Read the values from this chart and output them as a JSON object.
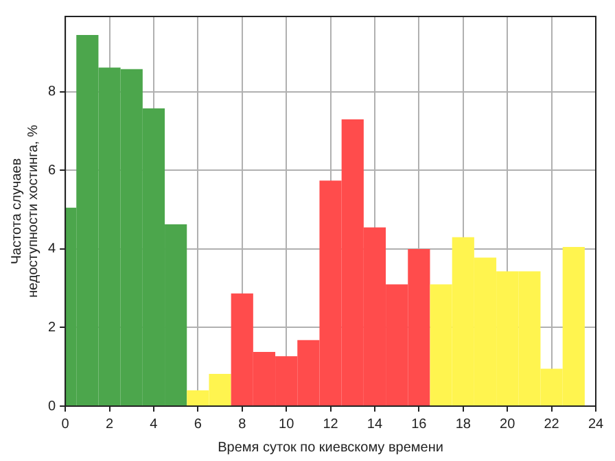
{
  "chart_data": {
    "type": "histogram",
    "xlabel": "Время суток по киевскому времени",
    "ylabel": "Частота случаев\nнедоступности хостинга, %",
    "bins": [
      0,
      0.5,
      1.5,
      2.5,
      3.5,
      4.5,
      5.5,
      6.5,
      7.5,
      8.5,
      9.5,
      10.5,
      11.5,
      12.5,
      13.5,
      14.5,
      15.5,
      16.5,
      17.5,
      18.5,
      19.5,
      20.5,
      21.5,
      22.5,
      23.5
    ],
    "values": [
      5.05,
      9.45,
      8.62,
      8.58,
      7.58,
      4.63,
      0.4,
      0.82,
      2.87,
      1.38,
      1.27,
      1.68,
      5.74,
      7.3,
      4.55,
      3.1,
      4.0,
      3.1,
      4.3,
      3.78,
      3.43,
      3.43,
      0.95,
      4.05
    ],
    "colors": [
      "#4ca64c",
      "#4ca64c",
      "#4ca64c",
      "#4ca64c",
      "#4ca64c",
      "#4ca64c",
      "#fff44f",
      "#fff44f",
      "#ff4c4c",
      "#ff4c4c",
      "#ff4c4c",
      "#ff4c4c",
      "#ff4c4c",
      "#ff4c4c",
      "#ff4c4c",
      "#ff4c4c",
      "#ff4c4c",
      "#fff44f",
      "#fff44f",
      "#fff44f",
      "#fff44f",
      "#fff44f",
      "#fff44f",
      "#fff44f"
    ],
    "xlim": [
      0,
      24
    ],
    "xticks": [
      0,
      2,
      4,
      6,
      8,
      10,
      12,
      14,
      16,
      18,
      20,
      22,
      24
    ],
    "ylim": [
      0,
      9.92
    ],
    "yticks": [
      0,
      2,
      4,
      6,
      8
    ],
    "grid": true
  }
}
